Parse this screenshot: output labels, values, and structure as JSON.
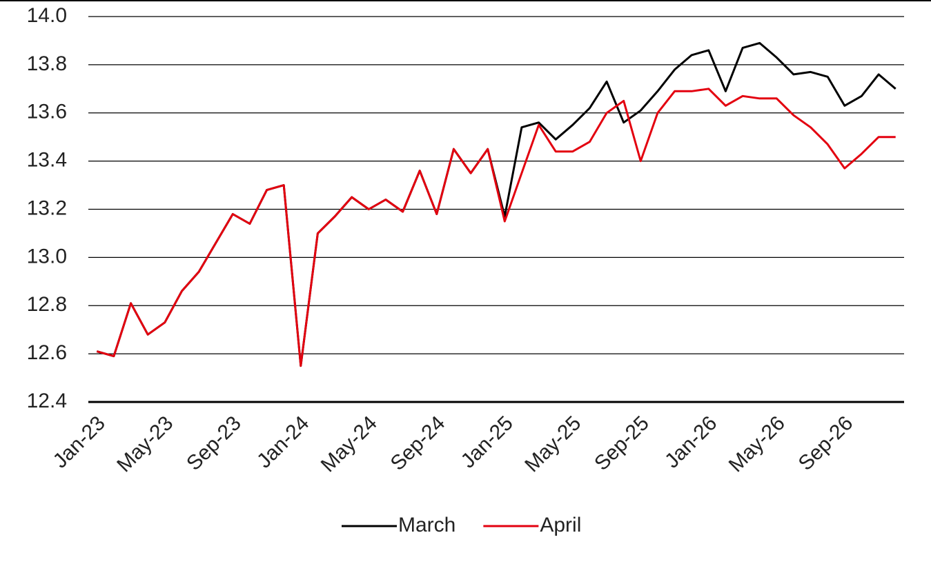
{
  "chart_data": {
    "type": "line",
    "categories": [
      "Jan-23",
      null,
      null,
      null,
      "May-23",
      null,
      null,
      null,
      "Sep-23",
      null,
      null,
      null,
      "Jan-24",
      null,
      null,
      null,
      "May-24",
      null,
      null,
      null,
      "Sep-24",
      null,
      null,
      null,
      "Jan-25",
      null,
      null,
      null,
      "May-25",
      null,
      null,
      null,
      "Sep-25",
      null,
      null,
      null,
      "Jan-26",
      null,
      null,
      null,
      "May-26",
      null,
      null,
      null,
      "Sep-26",
      null,
      null,
      null
    ],
    "series": [
      {
        "name": "March",
        "color": "#000000",
        "values": [
          12.61,
          12.59,
          12.81,
          12.68,
          12.73,
          12.86,
          12.94,
          13.06,
          13.18,
          13.14,
          13.28,
          13.3,
          12.55,
          13.1,
          13.17,
          13.25,
          13.2,
          13.24,
          13.19,
          13.36,
          13.18,
          13.45,
          13.35,
          13.45,
          13.17,
          13.54,
          13.56,
          13.49,
          13.55,
          13.62,
          13.73,
          13.56,
          13.61,
          13.69,
          13.78,
          13.84,
          13.86,
          13.69,
          13.87,
          13.89,
          13.83,
          13.76,
          13.77,
          13.75,
          13.63,
          13.67,
          13.76,
          13.7
        ]
      },
      {
        "name": "April",
        "color": "#e3000f",
        "values": [
          12.61,
          12.59,
          12.81,
          12.68,
          12.73,
          12.86,
          12.94,
          13.06,
          13.18,
          13.14,
          13.28,
          13.3,
          12.55,
          13.1,
          13.17,
          13.25,
          13.2,
          13.24,
          13.19,
          13.36,
          13.18,
          13.45,
          13.35,
          13.45,
          13.15,
          13.35,
          13.55,
          13.44,
          13.44,
          13.48,
          13.6,
          13.65,
          13.4,
          13.6,
          13.69,
          13.69,
          13.7,
          13.63,
          13.67,
          13.66,
          13.66,
          13.59,
          13.54,
          13.47,
          13.37,
          13.43,
          13.5,
          13.5
        ]
      }
    ],
    "ylim": [
      12.4,
      14.0
    ],
    "yticks": [
      {
        "value": 12.4,
        "label": "12.4"
      },
      {
        "value": 12.6,
        "label": "12.6"
      },
      {
        "value": 12.8,
        "label": "12.8"
      },
      {
        "value": 13.0,
        "label": "13.0"
      },
      {
        "value": 13.2,
        "label": "13.2"
      },
      {
        "value": 13.4,
        "label": "13.4"
      },
      {
        "value": 13.6,
        "label": "13.6"
      },
      {
        "value": 13.8,
        "label": "13.8"
      },
      {
        "value": 14.0,
        "label": "14.0"
      }
    ],
    "grid": true,
    "legend": "bottom"
  }
}
